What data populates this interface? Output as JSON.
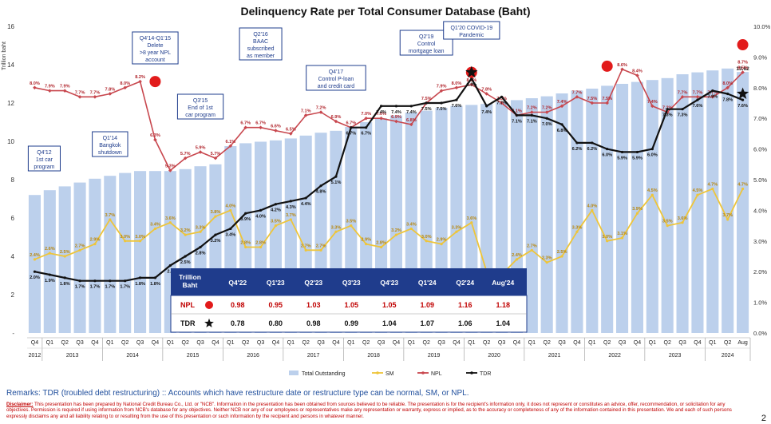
{
  "title": "Delinquency Rate per Total Consumer Database (Baht)",
  "remarks": "Remarks: TDR (troubled debt restructuring) :: Accounts which have restructure date or restructure type can be normal, SM, or NPL.",
  "disclaimer_label": "Disclaimer:",
  "disclaimer_text": " This presentation has been prepared by National Credit Bureau Co., Ltd. or \"NCB\". Information in the presentation has been obtained from sources believed to be reliable. The presentation is for the recipient's information only, it does not represent or constitutes an advice, offer, recommendation, or solicitation for any objectives. Permission is required if using information from NCB's database for any objectives. Neither NCB nor any of our employees or representatives make any representation or warranty, express or implied, as to the accuracy or completeness of any of the information contained in this presentation. We and each of such persons expressly disclaims any and all liability relating to or resulting from the use of this presentation or such information by the recipient and persons in whatever manner.",
  "page_number": "2",
  "colors": {
    "bar": "#bcd0ec",
    "sm": "#eec53a",
    "npl": "#c8474e",
    "tdr": "#111111",
    "box_border": "#1e3c8c",
    "box_text": "#1e3c8c",
    "table_header": "#1f3c8c",
    "table_npl": "#c00000"
  },
  "chart_data": {
    "type": "bar+line",
    "title": "Delinquency Rate per Total Consumer Database (Baht)",
    "left_axis": {
      "label": "Trillion baht",
      "ticks": [
        "16",
        "14",
        "12",
        "10",
        "8",
        "6",
        "4",
        "2",
        "-"
      ],
      "ylim": [
        0,
        16
      ]
    },
    "right_axis": {
      "ticks": [
        "10.0%",
        "9.0%",
        "8.0%",
        "7.0%",
        "6.0%",
        "5.0%",
        "4.0%",
        "3.0%",
        "2.0%",
        "1.0%",
        "0.0%"
      ],
      "ylim": [
        0,
        10
      ]
    },
    "quarters": [
      "Q4",
      "Q1",
      "Q2",
      "Q3",
      "Q4",
      "Q1",
      "Q2",
      "Q3",
      "Q4",
      "Q1",
      "Q2",
      "Q3",
      "Q4",
      "Q1",
      "Q2",
      "Q3",
      "Q4",
      "Q1",
      "Q2",
      "Q3",
      "Q4",
      "Q1",
      "Q2",
      "Q3",
      "Q4",
      "Q1",
      "Q2",
      "Q3",
      "Q4",
      "Q1",
      "Q2",
      "Q3",
      "Q4",
      "Q1",
      "Q2",
      "Q3",
      "Q4",
      "Q1",
      "Q2",
      "Q3",
      "Q4",
      "Q1",
      "Q2",
      "Q3",
      "Q4",
      "Q1",
      "Q2",
      "Aug"
    ],
    "years": [
      {
        "label": "2012",
        "start": 0,
        "end": 0
      },
      {
        "label": "2013",
        "start": 1,
        "end": 4
      },
      {
        "label": "2014",
        "start": 5,
        "end": 8
      },
      {
        "label": "2015",
        "start": 9,
        "end": 12
      },
      {
        "label": "2016",
        "start": 13,
        "end": 16
      },
      {
        "label": "2017",
        "start": 17,
        "end": 20
      },
      {
        "label": "2018",
        "start": 21,
        "end": 24
      },
      {
        "label": "2019",
        "start": 25,
        "end": 28
      },
      {
        "label": "2020",
        "start": 29,
        "end": 32
      },
      {
        "label": "2021",
        "start": 33,
        "end": 36
      },
      {
        "label": "2022",
        "start": 37,
        "end": 40
      },
      {
        "label": "2023",
        "start": 41,
        "end": 44
      },
      {
        "label": "2024",
        "start": 45,
        "end": 47
      }
    ],
    "series": [
      {
        "name": "Total Outstanding",
        "type": "bar",
        "axis": "left",
        "values": [
          7.2,
          7.45,
          7.65,
          7.85,
          8.05,
          8.2,
          8.35,
          8.45,
          8.45,
          8.45,
          8.55,
          8.7,
          8.8,
          9.75,
          9.9,
          9.98,
          10.05,
          10.15,
          10.3,
          10.45,
          10.55,
          10.75,
          11.0,
          11.2,
          11.35,
          11.5,
          11.6,
          11.75,
          11.85,
          11.9,
          11.95,
          12.05,
          12.15,
          12.25,
          12.35,
          12.5,
          12.65,
          12.75,
          12.9,
          13.0,
          13.1,
          13.2,
          13.3,
          13.5,
          13.6,
          13.7,
          13.8,
          13.62
        ],
        "value_labels": {
          "47": "13.62"
        }
      },
      {
        "name": "SM",
        "type": "line",
        "axis": "right",
        "values": [
          2.4,
          2.6,
          2.5,
          2.7,
          2.9,
          3.7,
          3.0,
          3.0,
          3.4,
          3.6,
          3.2,
          3.3,
          3.8,
          4.0,
          2.8,
          2.8,
          3.5,
          3.7,
          2.7,
          2.7,
          3.3,
          3.5,
          2.9,
          2.8,
          3.2,
          3.4,
          3.0,
          2.9,
          3.3,
          3.6,
          2.0,
          1.9,
          2.4,
          2.7,
          2.3,
          2.5,
          3.3,
          4.0,
          3.0,
          3.1,
          3.9,
          4.5,
          3.5,
          3.6,
          4.5,
          4.7,
          3.7,
          4.7
        ],
        "labels": [
          "2.4%",
          "2.6%",
          "2.5%",
          "2.7%",
          "2.9%",
          "3.7%",
          "3.0%",
          "3.0%",
          "3.4%",
          "3.6%",
          "3.2%",
          "3.3%",
          "3.8%",
          "4.0%",
          "2.8%",
          "2.8%",
          "3.5%",
          "3.7%",
          "2.7%",
          "2.7%",
          "3.3%",
          "3.5%",
          "2.9%",
          "2.8%",
          "3.2%",
          "3.4%",
          "3.0%",
          "2.9%",
          "3.3%",
          "3.6%",
          "",
          "1.9%",
          "2.4%",
          "2.7%",
          "2.3%",
          "2.5%",
          "3.3%",
          "4.0%",
          "3.0%",
          "3.1%",
          "3.9%",
          "4.5%",
          "3.5%",
          "3.6%",
          "4.5%",
          "4.7%",
          "3.7%",
          "4.7%"
        ]
      },
      {
        "name": "NPL",
        "type": "line",
        "axis": "right",
        "values": [
          8.0,
          7.9,
          7.9,
          7.7,
          7.7,
          7.8,
          8.0,
          8.2,
          6.3,
          5.3,
          5.7,
          5.9,
          5.7,
          6.1,
          6.7,
          6.7,
          6.6,
          6.5,
          7.1,
          7.2,
          6.9,
          6.7,
          7.0,
          7.0,
          6.9,
          6.8,
          7.5,
          7.9,
          8.0,
          8.1,
          7.8,
          7.5,
          7.1,
          7.2,
          7.2,
          7.4,
          7.7,
          7.5,
          7.5,
          8.6,
          8.4,
          7.4,
          7.2,
          7.7,
          7.7,
          7.7,
          8.0,
          8.5
        ],
        "labels": [
          "8.0%",
          "7.9%",
          "7.9%",
          "7.7%",
          "7.7%",
          "7.8%",
          "8.0%",
          "8.2%",
          "6.3%",
          "5.3%",
          "5.7%",
          "5.9%",
          "5.7%",
          "6.1%",
          "6.7%",
          "6.7%",
          "6.6%",
          "6.5%",
          "7.1%",
          "7.2%",
          "6.9%",
          "6.7%",
          "7.0%",
          "7.0%",
          "6.9%",
          "6.8%",
          "7.5%",
          "7.9%",
          "8.0%",
          "8.1%",
          "7.8%",
          "7.5%",
          "7.1%",
          "7.2%",
          "7.2%",
          "7.4%",
          "7.7%",
          "7.5%",
          "7.5%",
          "8.6%",
          "8.4%",
          "7.4%",
          "7.2%",
          "7.7%",
          "7.7%",
          "7.7%",
          "8.0%",
          "8.5%"
        ],
        "extra_label": {
          "index": 47,
          "text": "8.7%"
        }
      },
      {
        "name": "TDR",
        "type": "line",
        "axis": "right",
        "values": [
          2.0,
          1.9,
          1.8,
          1.7,
          1.7,
          1.7,
          1.7,
          1.8,
          1.8,
          2.2,
          2.5,
          2.8,
          3.2,
          3.4,
          3.9,
          4.0,
          4.2,
          4.3,
          4.4,
          4.8,
          5.1,
          6.7,
          6.7,
          7.4,
          7.4,
          7.4,
          7.5,
          7.5,
          7.6,
          8.3,
          7.4,
          7.7,
          7.1,
          7.1,
          7.0,
          6.8,
          6.2,
          6.2,
          6.0,
          5.9,
          5.9,
          6.0,
          7.3,
          7.3,
          7.6,
          7.9,
          7.8,
          7.6
        ],
        "labels": [
          "2.0%",
          "1.9%",
          "1.8%",
          "1.7%",
          "1.7%",
          "1.7%",
          "1.7%",
          "1.8%",
          "1.8%",
          "2.2",
          "2.5%",
          "2.8%",
          "3.2%",
          "3.4%",
          "3.9%",
          "4.0%",
          "4.2%",
          "4.3%",
          "4.4%",
          "4.8%",
          "5.1%",
          "6.7%",
          "6.7%",
          "7.4%",
          "7.4%",
          "7.4%",
          "7.5%",
          "7.5%",
          "7.6%",
          "8.3%",
          "7.4%",
          "7.7%",
          "7.1%",
          "7.1%",
          "7.0%",
          "6.8%",
          "6.2%",
          "6.2%",
          "6.0%",
          "5.9%",
          "5.9%",
          "6.0%",
          "7.3%",
          "7.3%",
          "7.6%",
          "7.9%",
          "7.8%",
          "7.6%"
        ]
      }
    ],
    "annotations": [
      {
        "text": [
          "Q4'12",
          "1st car",
          "program"
        ],
        "index": 0
      },
      {
        "text": [
          "Q1'14",
          "Bangkok",
          "shutdown"
        ],
        "index": 5
      },
      {
        "text": [
          "Q4'14-Q1'15",
          "Delete",
          ">8 year NPL",
          "account"
        ],
        "index": 8
      },
      {
        "text": [
          "Q3'15",
          "End of 1st",
          "car program"
        ],
        "index": 11
      },
      {
        "text": [
          "Q2'16",
          "BAAC",
          "subscribed",
          "as member"
        ],
        "index": 15
      },
      {
        "text": [
          "Q4'17",
          "Control P-loan",
          "and credit card"
        ],
        "index": 20
      },
      {
        "text": [
          "Q2'19",
          "Control",
          "mortgage loan"
        ],
        "index": 26
      },
      {
        "text": [
          "Q1'20 COVID-19",
          "Pandemic"
        ],
        "index": 29
      }
    ],
    "markers": [
      {
        "type": "red-circle",
        "index": 8,
        "axis": "right",
        "value": 8.2
      },
      {
        "type": "red-circle",
        "index": 29,
        "axis": "right",
        "value": 8.5
      },
      {
        "type": "black-star",
        "index": 29,
        "axis": "right",
        "value": 8.5
      },
      {
        "type": "red-circle",
        "index": 38,
        "axis": "right",
        "value": 8.7
      },
      {
        "type": "red-circle",
        "index": 47,
        "axis": "right",
        "value": 9.4
      },
      {
        "type": "black-star",
        "index": 47,
        "axis": "right",
        "value": 7.8
      }
    ],
    "legend": {
      "position": "bottom",
      "items": [
        "Total Outstanding",
        "SM",
        "NPL",
        "TDR"
      ]
    },
    "table": {
      "corner": [
        "Trillion",
        "Baht"
      ],
      "columns": [
        "Q4'22",
        "Q1'23",
        "Q2'23",
        "Q3'23",
        "Q4'23",
        "Q1'24",
        "Q2'24",
        "Aug'24"
      ],
      "rows": [
        {
          "label": "NPL",
          "values": [
            "0.98",
            "0.95",
            "1.03",
            "1.05",
            "1.05",
            "1.09",
            "1.16",
            "1.18"
          ]
        },
        {
          "label": "TDR",
          "values": [
            "0.78",
            "0.80",
            "0.98",
            "0.99",
            "1.04",
            "1.07",
            "1.06",
            "1.04"
          ]
        }
      ]
    }
  }
}
